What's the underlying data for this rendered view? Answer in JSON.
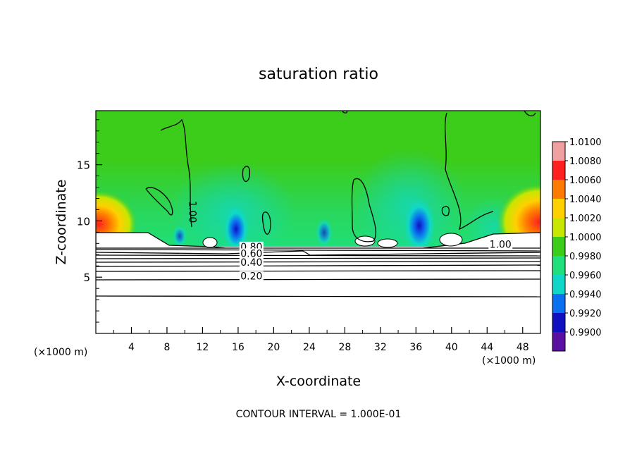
{
  "chart_data": {
    "type": "heatmap",
    "title": "saturation ratio",
    "xlabel": "X-coordinate",
    "ylabel": "Z-coordinate",
    "x_unit": "(×1000 m)",
    "x_unit_right": "(×1000 m)",
    "xlim": [
      0,
      50
    ],
    "ylim": [
      0,
      19.8
    ],
    "x_ticks": [
      4,
      8,
      12,
      16,
      20,
      24,
      28,
      32,
      36,
      40,
      44,
      48
    ],
    "y_ticks": [
      5,
      10,
      15
    ],
    "colorbar": {
      "labels": [
        "1.0100",
        "1.0080",
        "1.0060",
        "1.0040",
        "1.0020",
        "1.0000",
        "0.9980",
        "0.9960",
        "0.9940",
        "0.9920",
        "0.9900"
      ],
      "colors": [
        "#f0a0a0",
        "#ff2020",
        "#ff7a00",
        "#ffd000",
        "#c8e600",
        "#3ccc1a",
        "#1fe07a",
        "#10d8c8",
        "#0a70f0",
        "#1010c0",
        "#5a10a0"
      ]
    },
    "contour_labels": [
      {
        "text": "1.00",
        "x": 10.5,
        "z": 10.8
      },
      {
        "text": "0.80",
        "x": 17.5,
        "z": 7.4
      },
      {
        "text": "0.60",
        "x": 17.5,
        "z": 6.8
      },
      {
        "text": "0.40",
        "x": 17.5,
        "z": 6.0
      },
      {
        "text": "0.20",
        "x": 17.5,
        "z": 4.8
      },
      {
        "text": "1.00",
        "x": 45.5,
        "z": 7.6
      }
    ],
    "footnote": "CONTOUR INTERVAL = 1.000E-01"
  }
}
